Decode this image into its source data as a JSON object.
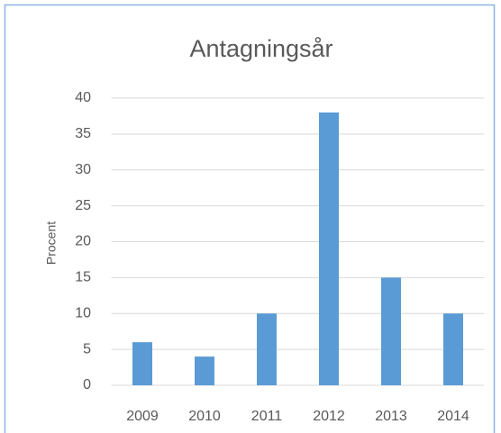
{
  "chart_data": {
    "type": "bar",
    "title": "Antagningsår",
    "y_label": "Procent",
    "categories": [
      "2009",
      "2010",
      "2011",
      "2012",
      "2013",
      "2014"
    ],
    "values": [
      6,
      4,
      10,
      38,
      15,
      10
    ],
    "color": "#5b9bd5",
    "ylim": [
      0,
      40
    ],
    "yticks": [
      0,
      5,
      10,
      15,
      20,
      25,
      30,
      35,
      40
    ],
    "grid": true
  }
}
